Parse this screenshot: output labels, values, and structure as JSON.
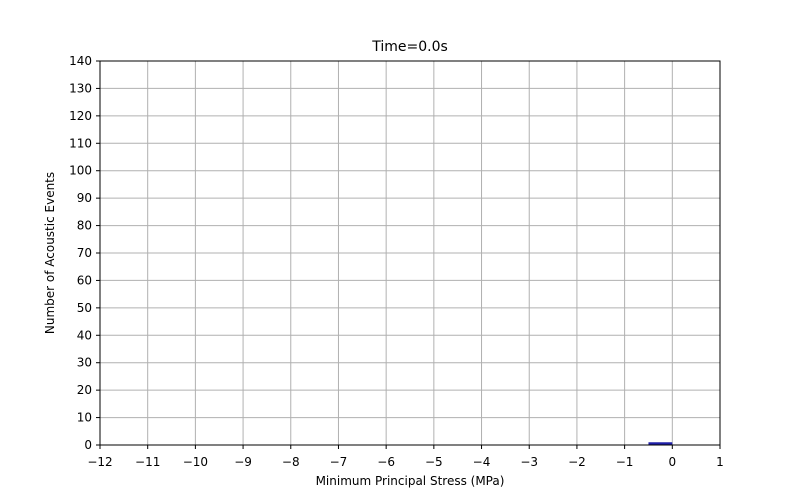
{
  "chart_data": {
    "type": "bar",
    "title": "Time=0.0s",
    "xlabel": "Minimum Principal Stress (MPa)",
    "ylabel": "Number of Acoustic Events",
    "xlim": [
      -12,
      1
    ],
    "ylim": [
      0,
      140
    ],
    "xticks": [
      -12,
      -11,
      -10,
      -9,
      -8,
      -7,
      -6,
      -5,
      -4,
      -3,
      -2,
      -1,
      0,
      1
    ],
    "yticks": [
      0,
      10,
      20,
      30,
      40,
      50,
      60,
      70,
      80,
      90,
      100,
      110,
      120,
      130,
      140
    ],
    "grid": true,
    "bars": [
      {
        "x_start": -0.5,
        "x_end": 0.0,
        "value": 1
      }
    ],
    "colors": {
      "bar_fill": "#1f1fa8",
      "grid": "#b0b0b0",
      "axis": "#000000"
    }
  }
}
